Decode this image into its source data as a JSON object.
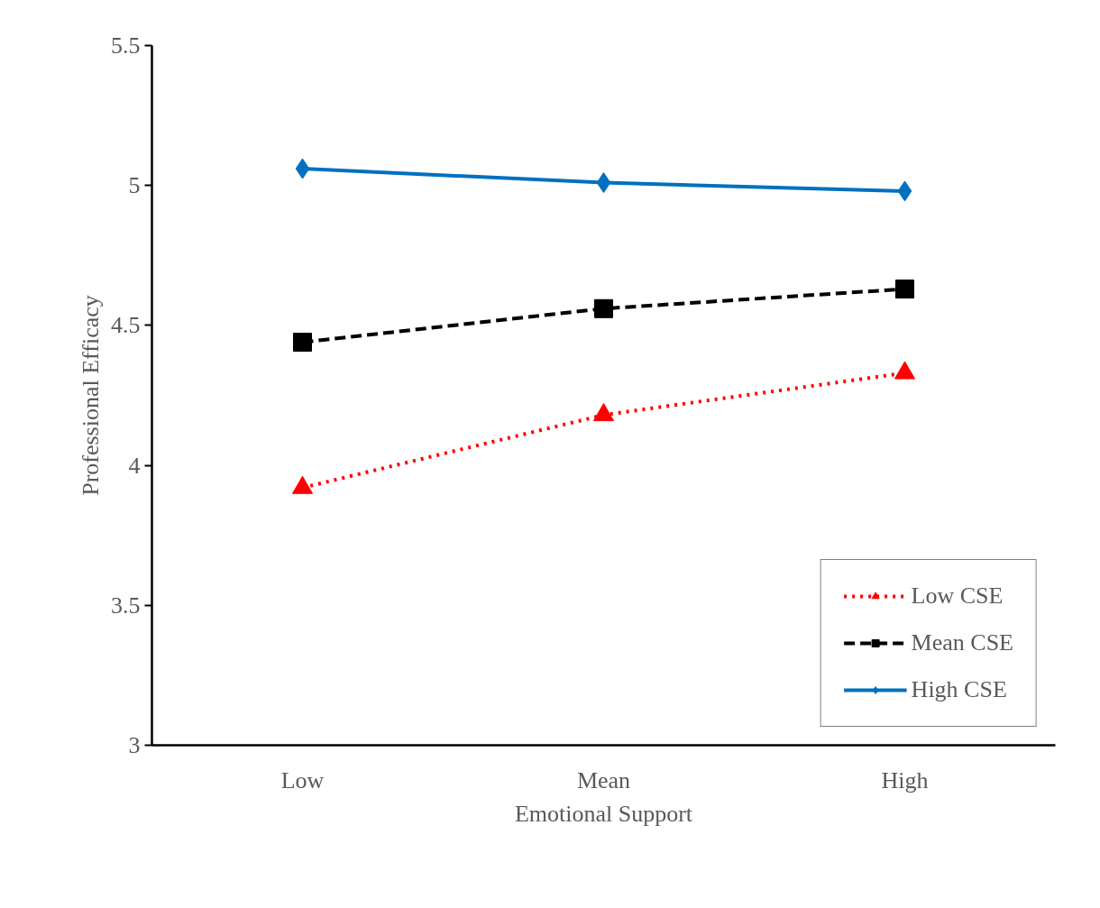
{
  "chart_data": {
    "type": "line",
    "xlabel": "Emotional Support",
    "ylabel": "Professional Efficacy",
    "categories": [
      "Low",
      "Mean",
      "High"
    ],
    "series": [
      {
        "name": "Low CSE",
        "color": "#ff0000",
        "values": [
          3.92,
          4.18,
          4.33
        ],
        "marker": "triangle",
        "line_style": "dotted"
      },
      {
        "name": "Mean CSE",
        "color": "#000000",
        "values": [
          4.44,
          4.56,
          4.63
        ],
        "marker": "square",
        "line_style": "dashed"
      },
      {
        "name": "High CSE",
        "color": "#0070c0",
        "values": [
          5.06,
          5.01,
          4.98
        ],
        "marker": "diamond",
        "line_style": "solid"
      }
    ],
    "ylim": [
      3,
      5.5
    ],
    "yticks": [
      3,
      3.5,
      4,
      4.5,
      5,
      5.5
    ],
    "grid": false,
    "legend": "bottom right"
  }
}
